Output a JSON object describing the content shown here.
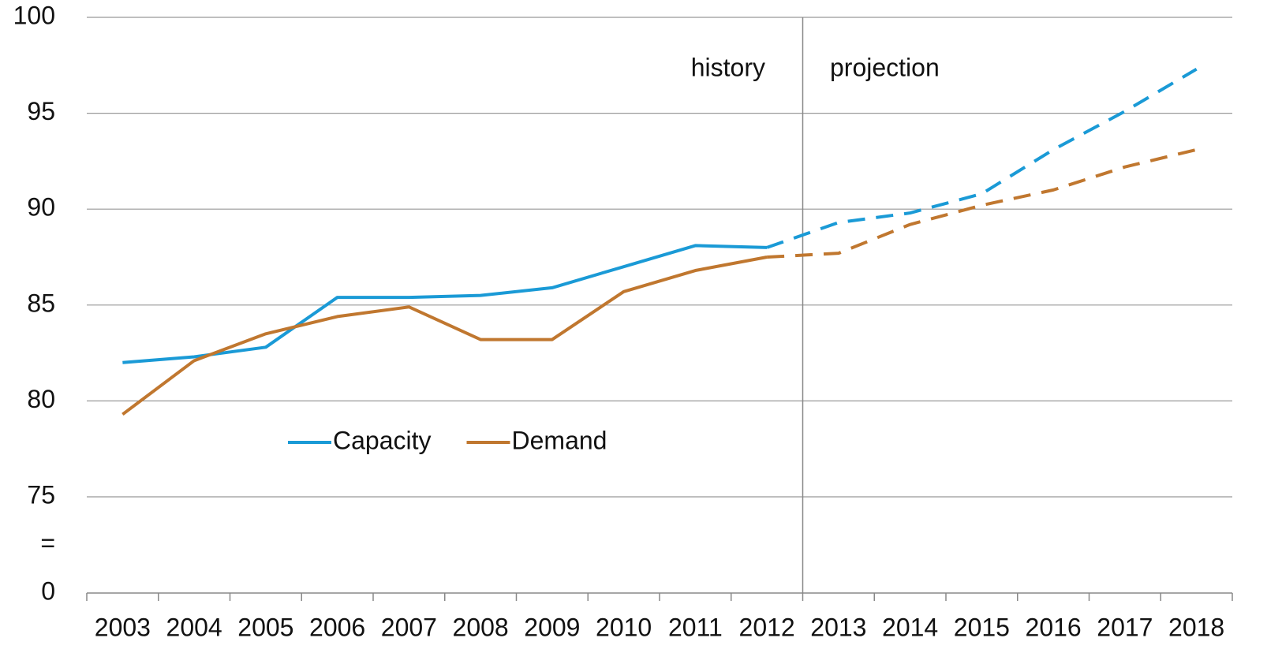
{
  "chart_data": {
    "type": "line",
    "categories": [
      "2003",
      "2004",
      "2005",
      "2006",
      "2007",
      "2008",
      "2009",
      "2010",
      "2011",
      "2012",
      "2013",
      "2014",
      "2015",
      "2016",
      "2017",
      "2018"
    ],
    "series": [
      {
        "name": "Capacity",
        "color": "#1a9ad6",
        "values": [
          82.0,
          82.3,
          82.8,
          85.4,
          85.4,
          85.5,
          85.9,
          87.0,
          88.1,
          88.0,
          89.3,
          89.8,
          90.8,
          93.1,
          95.1,
          97.3
        ]
      },
      {
        "name": "Demand",
        "color": "#c0772f",
        "values": [
          79.3,
          82.1,
          83.5,
          84.4,
          84.9,
          83.2,
          83.2,
          85.7,
          86.8,
          87.5,
          87.7,
          89.2,
          90.2,
          91.0,
          92.2,
          93.1
        ]
      }
    ],
    "projection_start": "2012",
    "annotations": {
      "history": "history",
      "projection": "projection"
    },
    "ylim": [
      0,
      100
    ],
    "yticks": [
      0,
      75,
      80,
      85,
      90,
      95,
      100
    ],
    "axis_break": {
      "between": [
        0,
        75
      ],
      "label": "="
    },
    "grid": true,
    "legend": "center"
  }
}
